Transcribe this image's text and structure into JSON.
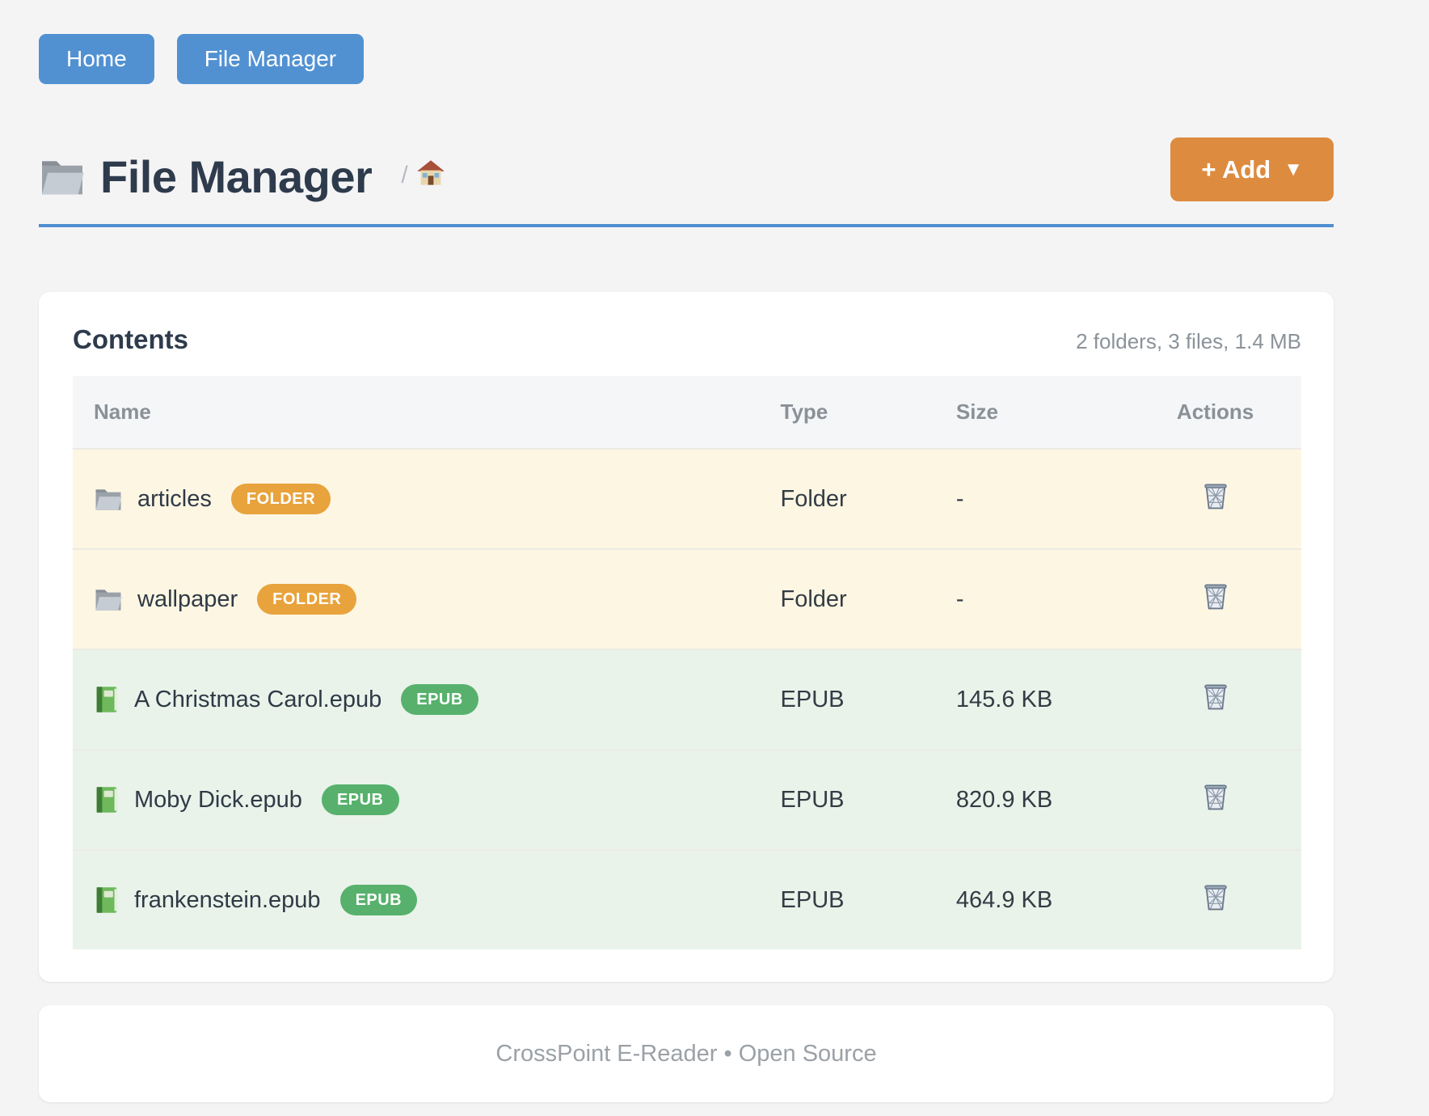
{
  "page": {
    "background": "#f4f4f5",
    "accent_blue": "#4e8fd0"
  },
  "nav": {
    "buttons": [
      {
        "label": "Home"
      },
      {
        "label": "File Manager"
      }
    ],
    "button_color": "#5191d2"
  },
  "header": {
    "title": "File Manager",
    "title_icon": "folder-icon",
    "breadcrumb_separator": "/",
    "breadcrumb_home_icon": "house-icon",
    "add_button": {
      "label": "+ Add",
      "caret": "▼",
      "color": "#dd8b3f"
    }
  },
  "contents_card": {
    "title": "Contents",
    "summary": "2 folders, 3 files, 1.4 MB",
    "table": {
      "columns": [
        "Name",
        "Type",
        "Size",
        "Actions"
      ],
      "action_icon": "trash-icon",
      "rows": [
        {
          "icon": "folder-icon",
          "name": "articles",
          "badge": "FOLDER",
          "badge_color": "#e8a33c",
          "type": "Folder",
          "size": "-",
          "row_color": "#fdf6e3"
        },
        {
          "icon": "folder-icon",
          "name": "wallpaper",
          "badge": "FOLDER",
          "badge_color": "#e8a33c",
          "type": "Folder",
          "size": "-",
          "row_color": "#fdf6e3"
        },
        {
          "icon": "book-icon",
          "name": "A Christmas Carol.epub",
          "badge": "EPUB",
          "badge_color": "#57b16c",
          "type": "EPUB",
          "size": "145.6 KB",
          "row_color": "#e9f3ea"
        },
        {
          "icon": "book-icon",
          "name": "Moby Dick.epub",
          "badge": "EPUB",
          "badge_color": "#57b16c",
          "type": "EPUB",
          "size": "820.9 KB",
          "row_color": "#e9f3ea"
        },
        {
          "icon": "book-icon",
          "name": "frankenstein.epub",
          "badge": "EPUB",
          "badge_color": "#57b16c",
          "type": "EPUB",
          "size": "464.9 KB",
          "row_color": "#e9f3ea"
        }
      ]
    }
  },
  "footer": {
    "text": "CrossPoint E-Reader • Open Source"
  }
}
